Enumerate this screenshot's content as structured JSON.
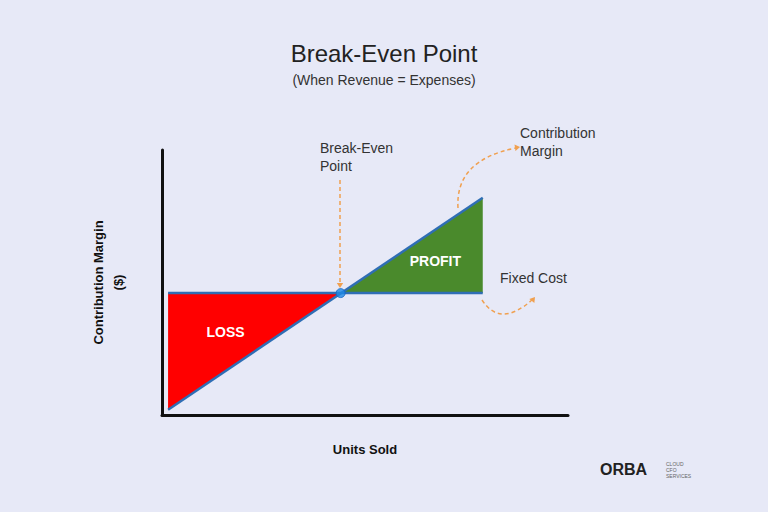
{
  "chart_data": {
    "type": "line",
    "title": "Break-Even Point",
    "subtitle": "(When Revenue = Expenses)",
    "x_label": "Units Sold",
    "y_label": "Contribution Margin\n($)",
    "xlim": [
      0,
      100
    ],
    "ylim": [
      0,
      100
    ],
    "xticks": [],
    "yticks": [],
    "tick_labels": false,
    "grid": false,
    "series": [
      {
        "name": "Contribution Margin",
        "color": "#2f6eb5",
        "line_style": "solid",
        "x": [
          1.5,
          79
        ],
        "values": [
          2,
          82
        ]
      },
      {
        "name": "Fixed Cost",
        "color": "#2f6eb5",
        "line_style": "solid",
        "x": [
          1.5,
          79
        ],
        "values": [
          46,
          46
        ]
      }
    ],
    "break_even": {
      "label": "Break-Even\nPoint",
      "x": 44,
      "y": 46,
      "color": "#1e88e5",
      "marker": "circle"
    },
    "regions": [
      {
        "label": "LOSS",
        "color": "#ff0000",
        "points": [
          [
            1.5,
            46
          ],
          [
            44,
            46
          ],
          [
            1.5,
            2
          ]
        ]
      },
      {
        "label": "PROFIT",
        "color": "#4a8a2c",
        "points": [
          [
            44,
            46
          ],
          [
            79,
            82
          ],
          [
            79,
            46
          ]
        ]
      }
    ]
  },
  "logo": {
    "text": "ORBA",
    "tagline": [
      "CLOUD",
      "CFO",
      "SERVICES"
    ]
  }
}
